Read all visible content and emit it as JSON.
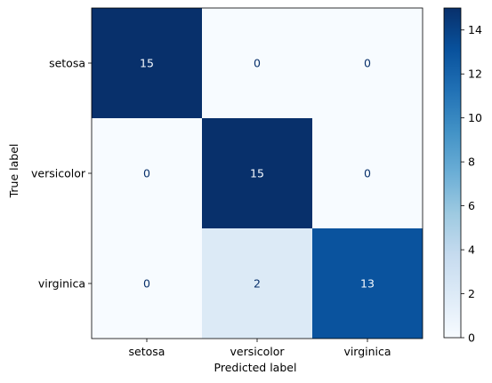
{
  "chart_data": {
    "type": "heatmap",
    "title": "",
    "xlabel": "Predicted label",
    "ylabel": "True label",
    "x_categories": [
      "setosa",
      "versicolor",
      "virginica"
    ],
    "y_categories": [
      "setosa",
      "versicolor",
      "virginica"
    ],
    "values": [
      [
        15,
        0,
        0
      ],
      [
        0,
        15,
        0
      ],
      [
        0,
        2,
        13
      ]
    ],
    "colormap": "Blues",
    "colorbar": {
      "range": [
        0,
        15
      ],
      "ticks": [
        "0",
        "2",
        "4",
        "6",
        "8",
        "10",
        "12",
        "14"
      ]
    },
    "colors": {
      "low": "#f7fbff",
      "high": "#08306b",
      "text_on_dark": "#f7fbff",
      "text_on_light": "#08306b"
    }
  }
}
